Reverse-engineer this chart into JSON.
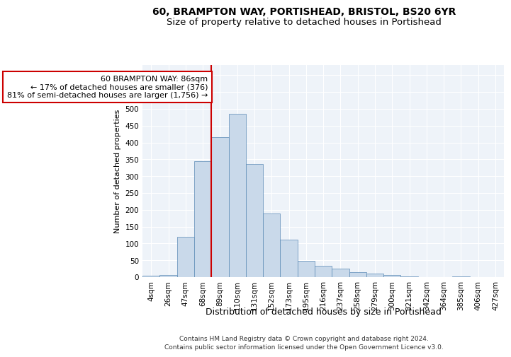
{
  "title1": "60, BRAMPTON WAY, PORTISHEAD, BRISTOL, BS20 6YR",
  "title2": "Size of property relative to detached houses in Portishead",
  "xlabel": "Distribution of detached houses by size in Portishead",
  "ylabel": "Number of detached properties",
  "footnote1": "Contains HM Land Registry data © Crown copyright and database right 2024.",
  "footnote2": "Contains public sector information licensed under the Open Government Licence v3.0.",
  "annotation_line1": "60 BRAMPTON WAY: 86sqm",
  "annotation_line2": "← 17% of detached houses are smaller (376)",
  "annotation_line3": "81% of semi-detached houses are larger (1,756) →",
  "bar_color": "#c9d9ea",
  "bar_edge_color": "#5a8ab5",
  "vline_color": "#cc0000",
  "annotation_box_color": "#cc0000",
  "categories": [
    "4sqm",
    "26sqm",
    "47sqm",
    "68sqm",
    "89sqm",
    "110sqm",
    "131sqm",
    "152sqm",
    "173sqm",
    "195sqm",
    "216sqm",
    "237sqm",
    "258sqm",
    "279sqm",
    "300sqm",
    "321sqm",
    "342sqm",
    "364sqm",
    "385sqm",
    "406sqm",
    "427sqm"
  ],
  "values": [
    5,
    7,
    120,
    345,
    416,
    485,
    335,
    190,
    112,
    49,
    34,
    25,
    14,
    10,
    7,
    2,
    1,
    1,
    2,
    1,
    1
  ],
  "vline_index": 4,
  "ylim": [
    0,
    630
  ],
  "yticks": [
    0,
    50,
    100,
    150,
    200,
    250,
    300,
    350,
    400,
    450,
    500,
    550,
    600
  ],
  "background_color": "#eef3f9",
  "grid_color": "#ffffff",
  "title1_fontsize": 10,
  "title2_fontsize": 9.5,
  "xlabel_fontsize": 9,
  "ylabel_fontsize": 8,
  "tick_fontsize": 7.5,
  "annotation_fontsize": 8,
  "footnote_fontsize": 6.5
}
